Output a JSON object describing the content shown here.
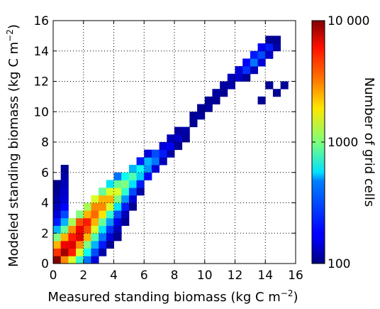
{
  "chart_data": {
    "type": "heatmap",
    "title": "",
    "xlabel": "Measured standing biomass (kg C m",
    "xlabel_sup": "−2",
    "xlabel_suffix": ")",
    "ylabel": "Modeled standing biomass (kg C m",
    "ylabel_sup": "−2",
    "ylabel_suffix": ")",
    "xlim": [
      0,
      16
    ],
    "ylim": [
      0,
      16
    ],
    "x_ticks": [
      0,
      2,
      4,
      6,
      8,
      10,
      12,
      14,
      16
    ],
    "y_ticks": [
      0,
      2,
      4,
      6,
      8,
      10,
      12,
      14,
      16
    ],
    "x_tick_labels": [
      "0",
      "2",
      "4",
      "6",
      "8",
      "10",
      "12",
      "14",
      "16"
    ],
    "y_tick_labels": [
      "0",
      "2",
      "4",
      "6",
      "8",
      "10",
      "12",
      "14",
      "16"
    ],
    "grid": true,
    "bin_width": 0.5,
    "colorbar": {
      "label": "Number of grid cells",
      "scale": "log",
      "range": [
        100,
        10000
      ],
      "tick_values": [
        10000,
        1000,
        100
      ],
      "tick_labels": [
        "10 000",
        "1000",
        "100"
      ],
      "colormap": "jet"
    },
    "cells": [
      [
        0.0,
        0.0,
        10000
      ],
      [
        0.5,
        0.0,
        3000
      ],
      [
        1.0,
        0.0,
        1500
      ],
      [
        1.5,
        0.0,
        700
      ],
      [
        2.0,
        0.0,
        300
      ],
      [
        2.5,
        0.0,
        150
      ],
      [
        0.0,
        0.5,
        4500
      ],
      [
        0.5,
        0.5,
        8500
      ],
      [
        1.0,
        0.5,
        5000
      ],
      [
        1.5,
        0.5,
        1500
      ],
      [
        2.0,
        0.5,
        600
      ],
      [
        2.5,
        0.5,
        250
      ],
      [
        3.0,
        0.5,
        120
      ],
      [
        0.0,
        1.0,
        2500
      ],
      [
        0.5,
        1.0,
        6000
      ],
      [
        1.0,
        1.0,
        6500
      ],
      [
        1.5,
        1.0,
        3000
      ],
      [
        2.0,
        1.0,
        1000
      ],
      [
        2.5,
        1.0,
        400
      ],
      [
        3.0,
        1.0,
        200
      ],
      [
        3.5,
        1.0,
        110
      ],
      [
        0.0,
        1.5,
        1000
      ],
      [
        0.5,
        1.5,
        2500
      ],
      [
        1.0,
        1.5,
        5000
      ],
      [
        1.5,
        1.5,
        6500
      ],
      [
        2.0,
        1.5,
        2500
      ],
      [
        2.5,
        1.5,
        800
      ],
      [
        3.0,
        1.5,
        300
      ],
      [
        3.5,
        1.5,
        150
      ],
      [
        4.0,
        1.5,
        110
      ],
      [
        0.0,
        2.0,
        400
      ],
      [
        0.5,
        2.0,
        900
      ],
      [
        1.0,
        2.0,
        3000
      ],
      [
        1.5,
        2.0,
        6000
      ],
      [
        2.0,
        2.0,
        4000
      ],
      [
        2.5,
        2.0,
        1500
      ],
      [
        3.0,
        2.0,
        500
      ],
      [
        3.5,
        2.0,
        220
      ],
      [
        4.0,
        2.0,
        130
      ],
      [
        0.0,
        2.5,
        200
      ],
      [
        0.5,
        2.5,
        400
      ],
      [
        1.0,
        2.5,
        1200
      ],
      [
        1.5,
        2.5,
        4000
      ],
      [
        2.0,
        2.5,
        5000
      ],
      [
        2.5,
        2.5,
        2500
      ],
      [
        3.0,
        2.5,
        900
      ],
      [
        3.5,
        2.5,
        350
      ],
      [
        4.0,
        2.5,
        160
      ],
      [
        4.5,
        2.5,
        110
      ],
      [
        0.0,
        3.0,
        150
      ],
      [
        0.5,
        3.0,
        250
      ],
      [
        1.5,
        3.0,
        1000
      ],
      [
        2.0,
        3.0,
        2500
      ],
      [
        2.5,
        3.0,
        3500
      ],
      [
        3.0,
        3.0,
        2000
      ],
      [
        3.5,
        3.0,
        700
      ],
      [
        4.0,
        3.0,
        250
      ],
      [
        4.5,
        3.0,
        130
      ],
      [
        0.0,
        3.5,
        130
      ],
      [
        0.5,
        3.5,
        180
      ],
      [
        2.0,
        3.5,
        1200
      ],
      [
        2.5,
        3.5,
        3000
      ],
      [
        3.0,
        3.5,
        3000
      ],
      [
        3.5,
        3.5,
        1500
      ],
      [
        4.0,
        3.5,
        500
      ],
      [
        4.5,
        3.5,
        200
      ],
      [
        5.0,
        3.5,
        110
      ],
      [
        0.0,
        4.0,
        120
      ],
      [
        0.5,
        4.0,
        150
      ],
      [
        2.5,
        4.0,
        1500
      ],
      [
        3.0,
        4.0,
        2500
      ],
      [
        3.5,
        4.0,
        2500
      ],
      [
        4.0,
        4.0,
        1000
      ],
      [
        4.5,
        4.0,
        350
      ],
      [
        5.0,
        4.0,
        150
      ],
      [
        0.0,
        4.5,
        110
      ],
      [
        0.5,
        4.5,
        140
      ],
      [
        3.0,
        4.5,
        900
      ],
      [
        3.5,
        4.5,
        1500
      ],
      [
        4.0,
        4.5,
        1500
      ],
      [
        4.5,
        4.5,
        700
      ],
      [
        5.0,
        4.5,
        250
      ],
      [
        5.5,
        4.5,
        120
      ],
      [
        0.0,
        5.0,
        105
      ],
      [
        0.5,
        5.0,
        130
      ],
      [
        3.5,
        5.0,
        500
      ],
      [
        4.0,
        5.0,
        900
      ],
      [
        4.5,
        5.0,
        1000
      ],
      [
        5.0,
        5.0,
        500
      ],
      [
        5.5,
        5.0,
        200
      ],
      [
        0.5,
        5.5,
        120
      ],
      [
        4.0,
        5.5,
        300
      ],
      [
        4.5,
        5.5,
        600
      ],
      [
        5.0,
        5.5,
        800
      ],
      [
        5.5,
        5.5,
        450
      ],
      [
        6.0,
        5.5,
        180
      ],
      [
        0.5,
        6.0,
        110
      ],
      [
        5.0,
        6.0,
        400
      ],
      [
        5.5,
        6.0,
        600
      ],
      [
        6.0,
        6.0,
        350
      ],
      [
        6.5,
        6.0,
        150
      ],
      [
        5.5,
        6.5,
        200
      ],
      [
        6.0,
        6.5,
        400
      ],
      [
        6.5,
        6.5,
        300
      ],
      [
        7.0,
        6.5,
        130
      ],
      [
        6.0,
        7.0,
        150
      ],
      [
        6.5,
        7.0,
        250
      ],
      [
        7.0,
        7.0,
        200
      ],
      [
        7.5,
        7.0,
        120
      ],
      [
        7.0,
        7.5,
        150
      ],
      [
        7.5,
        7.5,
        170
      ],
      [
        8.0,
        7.5,
        110
      ],
      [
        7.5,
        8.0,
        130
      ],
      [
        8.0,
        8.0,
        140
      ],
      [
        8.5,
        8.0,
        110
      ],
      [
        8.0,
        8.5,
        115
      ],
      [
        8.5,
        8.5,
        120
      ],
      [
        9.0,
        9.0,
        110
      ],
      [
        9.0,
        9.5,
        110
      ],
      [
        9.5,
        9.5,
        115
      ],
      [
        9.5,
        10.0,
        110
      ],
      [
        10.0,
        10.0,
        115
      ],
      [
        10.0,
        10.5,
        110
      ],
      [
        10.5,
        10.5,
        110
      ],
      [
        10.5,
        11.0,
        115
      ],
      [
        11.0,
        11.0,
        110
      ],
      [
        11.0,
        11.5,
        115
      ],
      [
        11.5,
        11.5,
        120
      ],
      [
        11.5,
        12.0,
        130
      ],
      [
        12.0,
        12.0,
        140
      ],
      [
        12.5,
        12.0,
        110
      ],
      [
        12.0,
        12.5,
        150
      ],
      [
        12.5,
        12.5,
        220
      ],
      [
        13.0,
        12.5,
        130
      ],
      [
        12.5,
        13.0,
        180
      ],
      [
        13.0,
        13.0,
        300
      ],
      [
        13.5,
        13.0,
        150
      ],
      [
        13.0,
        13.5,
        200
      ],
      [
        13.5,
        13.5,
        250
      ],
      [
        14.0,
        13.5,
        140
      ],
      [
        13.5,
        14.0,
        170
      ],
      [
        14.0,
        14.0,
        200
      ],
      [
        14.5,
        14.0,
        120
      ],
      [
        14.0,
        14.5,
        110
      ],
      [
        14.5,
        14.5,
        110
      ],
      [
        14.5,
        11.0,
        110
      ],
      [
        14.0,
        11.5,
        110
      ],
      [
        13.5,
        10.5,
        110
      ],
      [
        15.0,
        11.5,
        110
      ]
    ]
  }
}
